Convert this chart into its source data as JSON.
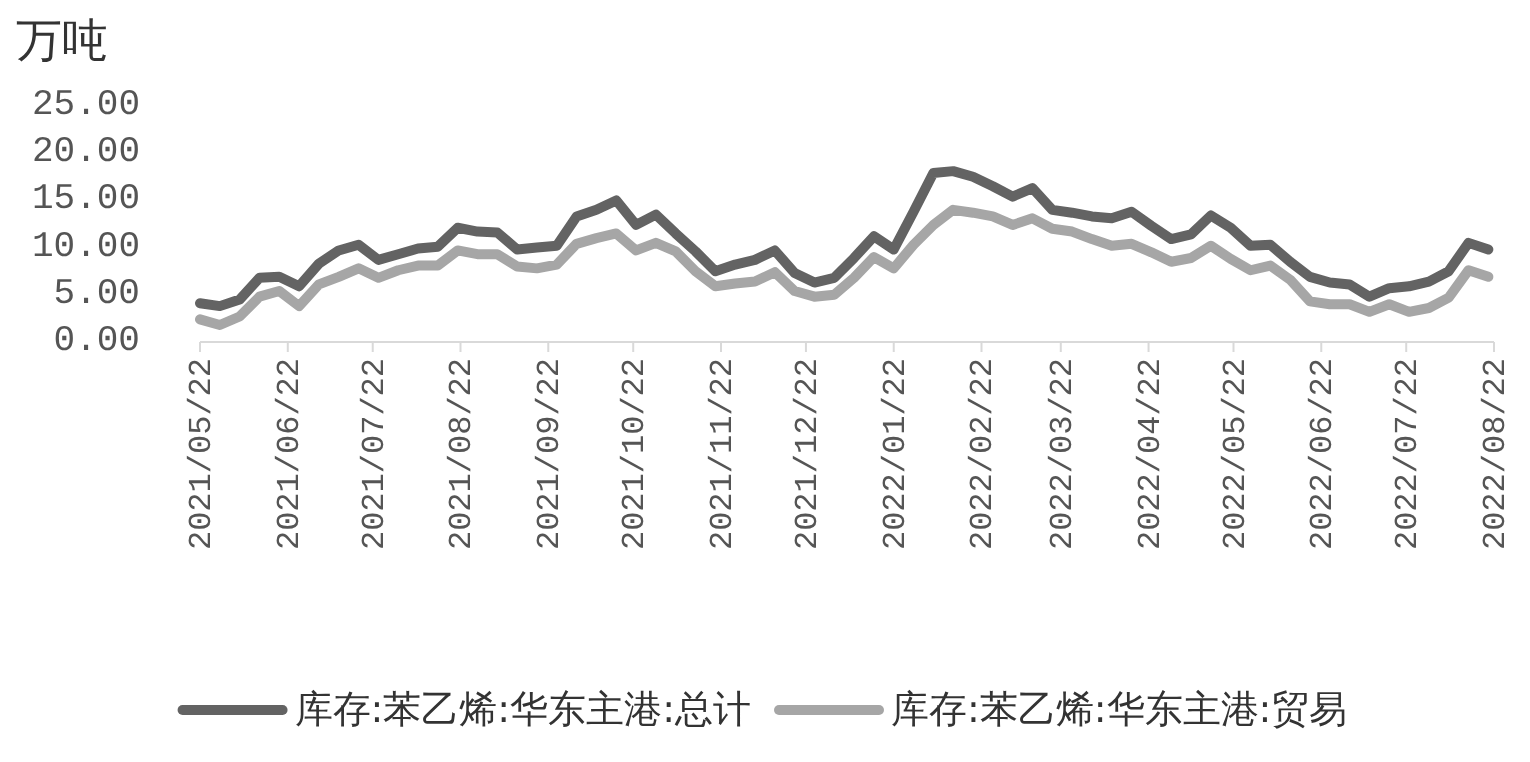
{
  "chart_data": {
    "type": "line",
    "ylabel": "万吨",
    "x": [
      "2021-05-22",
      "2021-05-29",
      "2021-06-05",
      "2021-06-12",
      "2021-06-19",
      "2021-06-26",
      "2021-07-03",
      "2021-07-10",
      "2021-07-17",
      "2021-07-24",
      "2021-07-31",
      "2021-08-07",
      "2021-08-14",
      "2021-08-21",
      "2021-08-28",
      "2021-09-04",
      "2021-09-11",
      "2021-09-18",
      "2021-09-25",
      "2021-10-02",
      "2021-10-09",
      "2021-10-16",
      "2021-10-23",
      "2021-10-30",
      "2021-11-06",
      "2021-11-13",
      "2021-11-20",
      "2021-11-27",
      "2021-12-04",
      "2021-12-11",
      "2021-12-18",
      "2021-12-25",
      "2022-01-01",
      "2022-01-08",
      "2022-01-15",
      "2022-01-22",
      "2022-01-29",
      "2022-02-05",
      "2022-02-12",
      "2022-02-19",
      "2022-02-26",
      "2022-03-05",
      "2022-03-12",
      "2022-03-19",
      "2022-03-26",
      "2022-04-02",
      "2022-04-09",
      "2022-04-16",
      "2022-04-23",
      "2022-04-30",
      "2022-05-07",
      "2022-05-14",
      "2022-05-21",
      "2022-05-28",
      "2022-06-04",
      "2022-06-11",
      "2022-06-18",
      "2022-06-25",
      "2022-07-02",
      "2022-07-09",
      "2022-07-16",
      "2022-07-23",
      "2022-07-30",
      "2022-08-06",
      "2022-08-13",
      "2022-08-20"
    ],
    "series": [
      {
        "name": "库存:苯乙烯:华东主港:总计",
        "color": "#636363",
        "values": [
          4.1,
          3.8,
          4.5,
          6.8,
          6.9,
          5.9,
          8.3,
          9.7,
          10.3,
          8.7,
          9.3,
          9.9,
          10.1,
          12.1,
          11.7,
          11.6,
          9.8,
          10.0,
          10.2,
          13.3,
          14.0,
          15.0,
          12.4,
          13.5,
          11.5,
          9.6,
          7.5,
          8.2,
          8.7,
          9.7,
          7.3,
          6.3,
          6.8,
          8.9,
          11.2,
          9.8,
          13.8,
          17.9,
          18.1,
          17.5,
          16.5,
          15.4,
          16.3,
          14.0,
          13.7,
          13.3,
          13.1,
          13.8,
          12.3,
          10.9,
          11.4,
          13.4,
          12.1,
          10.2,
          10.3,
          8.5,
          6.9,
          6.3,
          6.1,
          4.8,
          5.7,
          5.9,
          6.4,
          7.5,
          10.5,
          9.8
        ]
      },
      {
        "name": "库存:苯乙烯:华东主港:贸易",
        "color": "#a6a6a6",
        "values": [
          2.4,
          1.8,
          2.7,
          4.8,
          5.4,
          3.8,
          6.1,
          6.9,
          7.8,
          6.8,
          7.6,
          8.1,
          8.1,
          9.7,
          9.3,
          9.3,
          8.0,
          7.8,
          8.2,
          10.4,
          11.0,
          11.5,
          9.7,
          10.5,
          9.6,
          7.5,
          5.9,
          6.2,
          6.4,
          7.4,
          5.4,
          4.8,
          5.0,
          6.8,
          9.0,
          7.8,
          10.3,
          12.4,
          14.0,
          13.7,
          13.3,
          12.4,
          13.1,
          12.0,
          11.7,
          10.9,
          10.2,
          10.4,
          9.5,
          8.5,
          8.9,
          10.2,
          8.8,
          7.6,
          8.1,
          6.6,
          4.3,
          4.0,
          4.0,
          3.2,
          4.0,
          3.2,
          3.6,
          4.7,
          7.6,
          6.9
        ]
      }
    ],
    "xlim": [
      "2021-05-22",
      "2022-08-22"
    ],
    "xticks": [
      {
        "value": "2021-05-22",
        "label": "2021/05/22"
      },
      {
        "value": "2021-06-22",
        "label": "2021/06/22"
      },
      {
        "value": "2021-07-22",
        "label": "2021/07/22"
      },
      {
        "value": "2021-08-22",
        "label": "2021/08/22"
      },
      {
        "value": "2021-09-22",
        "label": "2021/09/22"
      },
      {
        "value": "2021-10-22",
        "label": "2021/10/22"
      },
      {
        "value": "2021-11-22",
        "label": "2021/11/22"
      },
      {
        "value": "2021-12-22",
        "label": "2021/12/22"
      },
      {
        "value": "2022-01-22",
        "label": "2022/01/22"
      },
      {
        "value": "2022-02-22",
        "label": "2022/02/22"
      },
      {
        "value": "2022-03-22",
        "label": "2022/03/22"
      },
      {
        "value": "2022-04-22",
        "label": "2022/04/22"
      },
      {
        "value": "2022-05-22",
        "label": "2022/05/22"
      },
      {
        "value": "2022-06-22",
        "label": "2022/06/22"
      },
      {
        "value": "2022-07-22",
        "label": "2022/07/22"
      },
      {
        "value": "2022-08-22",
        "label": "2022/08/22"
      }
    ],
    "ylim": [
      0,
      25
    ],
    "yticks": [
      {
        "value": 0,
        "label": "0.00"
      },
      {
        "value": 5,
        "label": "5.00"
      },
      {
        "value": 10,
        "label": "10.00"
      },
      {
        "value": 15,
        "label": "15.00"
      },
      {
        "value": 20,
        "label": "20.00"
      },
      {
        "value": 25,
        "label": "25.00"
      }
    ],
    "grid": false,
    "legend": "bottom",
    "line_style": "solid",
    "marker": "none"
  }
}
